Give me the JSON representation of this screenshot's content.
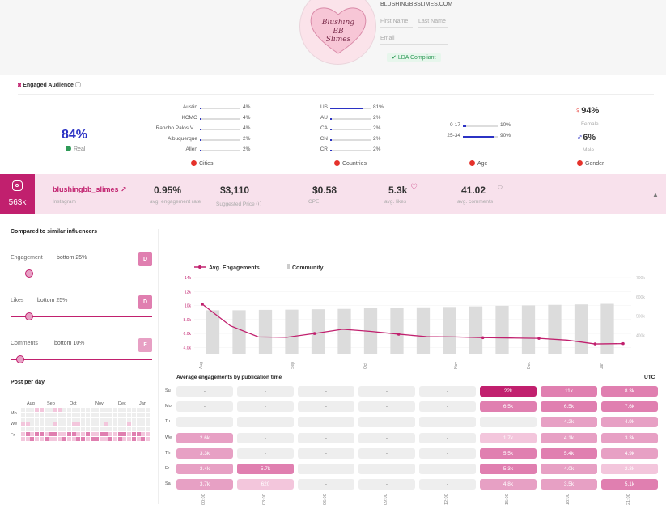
{
  "brand": {
    "logo_text": "Blushing BB Slimes",
    "email": "BLUSHINGBBSLIMES.COM",
    "first_name_ph": "First Name",
    "last_name_ph": "Last Name",
    "email_ph": "Email",
    "lda": "LDA Compliant"
  },
  "audience": {
    "title": "Engaged Audience",
    "real_pct": "84%",
    "real_label": "Real",
    "cities": {
      "items": [
        [
          "Austin",
          "4%",
          0.04
        ],
        [
          "KCMO",
          "4%",
          0.04
        ],
        [
          "Rancho Palos V...",
          "4%",
          0.04
        ],
        [
          "Albuquerque",
          "2%",
          0.02
        ],
        [
          "Allen",
          "2%",
          0.02
        ]
      ],
      "label": "Cities"
    },
    "countries": {
      "items": [
        [
          "US",
          "81%",
          0.81
        ],
        [
          "AU",
          "2%",
          0.02
        ],
        [
          "CA",
          "2%",
          0.02
        ],
        [
          "CN",
          "2%",
          0.02
        ],
        [
          "CR",
          "2%",
          0.02
        ]
      ],
      "label": "Countries"
    },
    "age": {
      "items": [
        [
          "0-17",
          "10%",
          0.1
        ],
        [
          "25-34",
          "90%",
          0.9
        ]
      ],
      "label": "Age"
    },
    "gender": {
      "female_pct": "94%",
      "female": "Female",
      "male_pct": "6%",
      "male": "Male",
      "label": "Gender"
    }
  },
  "profile": {
    "followers": "563k",
    "handle": "blushingbb_slimes",
    "platform": "Instagram",
    "metrics": [
      {
        "value": "0.95%",
        "label": "avg. engagement rate"
      },
      {
        "value": "$3,110",
        "label": "Suggested Price"
      },
      {
        "value": "$0.58",
        "label": "CPE"
      },
      {
        "value": "5.3k",
        "label": "avg. likes"
      },
      {
        "value": "41.02",
        "label": "avg. comments"
      }
    ]
  },
  "compare": {
    "title": "Compared to similar influencers",
    "rows": [
      {
        "name": "Engagement",
        "rank": "bottom 25%",
        "grade": "D",
        "pos": 0.25,
        "color": "#e07fb0"
      },
      {
        "name": "Likes",
        "rank": "bottom 25%",
        "grade": "D",
        "pos": 0.25,
        "color": "#e07fb0"
      },
      {
        "name": "Comments",
        "rank": "bottom 10%",
        "grade": "F",
        "pos": 0.1,
        "color": "#e7a0c4"
      }
    ]
  },
  "ppd": {
    "title": "Post per day",
    "months": [
      "Aug",
      "Sep",
      "Oct",
      "Nov",
      "Dec",
      "Jan"
    ],
    "days": [
      "Mo",
      "We",
      "Fr"
    ]
  },
  "chart_data": {
    "type": "line",
    "series": [
      {
        "name": "Avg. Engagements",
        "values": [
          10200,
          7100,
          5500,
          5450,
          6000,
          6600,
          6300,
          5900,
          5550,
          5500,
          5400,
          5350,
          5300,
          5050,
          4500,
          4550
        ]
      },
      {
        "name": "Community",
        "values": [
          530000,
          530000,
          532000,
          533000,
          535000,
          537000,
          540000,
          542000,
          545000,
          547000,
          550000,
          553000,
          555000,
          558000,
          560000,
          563000
        ]
      }
    ],
    "x_labels": [
      "Aug",
      "Sep",
      "Oct",
      "Nov",
      "Dec",
      "Jan"
    ],
    "y_left": [
      "14k",
      "12k",
      "10k",
      "8.0k",
      "6.0k",
      "4.0k"
    ],
    "y_right": [
      "700k",
      "600k",
      "500k",
      "400k"
    ],
    "ylim_left": [
      3000,
      14000
    ],
    "ylim_right": [
      300000,
      700000
    ]
  },
  "heatmap": {
    "title": "Average engagements by publication time",
    "tz": "UTC",
    "days": [
      "Su",
      "Mo",
      "Tu",
      "We",
      "Th",
      "Fr",
      "Sa"
    ],
    "hours": [
      "00:00",
      "03:00",
      "06:00",
      "09:00",
      "12:00",
      "15:00",
      "18:00",
      "21:00"
    ],
    "cells": [
      [
        "-",
        "-",
        "-",
        "-",
        "-",
        "22k",
        "11k",
        "8.3k"
      ],
      [
        "-",
        "-",
        "-",
        "-",
        "-",
        "6.5k",
        "6.5k",
        "7.6k"
      ],
      [
        "-",
        "-",
        "-",
        "-",
        "-",
        "-",
        "4.2k",
        "4.9k"
      ],
      [
        "2.6k",
        "-",
        "-",
        "-",
        "-",
        "1.7k",
        "4.1k",
        "3.3k"
      ],
      [
        "3.3k",
        "-",
        "-",
        "-",
        "-",
        "5.5k",
        "5.4k",
        "4.9k"
      ],
      [
        "3.4k",
        "5.7k",
        "-",
        "-",
        "-",
        "5.3k",
        "4.0k",
        "2.3k"
      ],
      [
        "3.7k",
        "620",
        "-",
        "-",
        "-",
        "4.8k",
        "3.5k",
        "5.1k"
      ]
    ]
  }
}
